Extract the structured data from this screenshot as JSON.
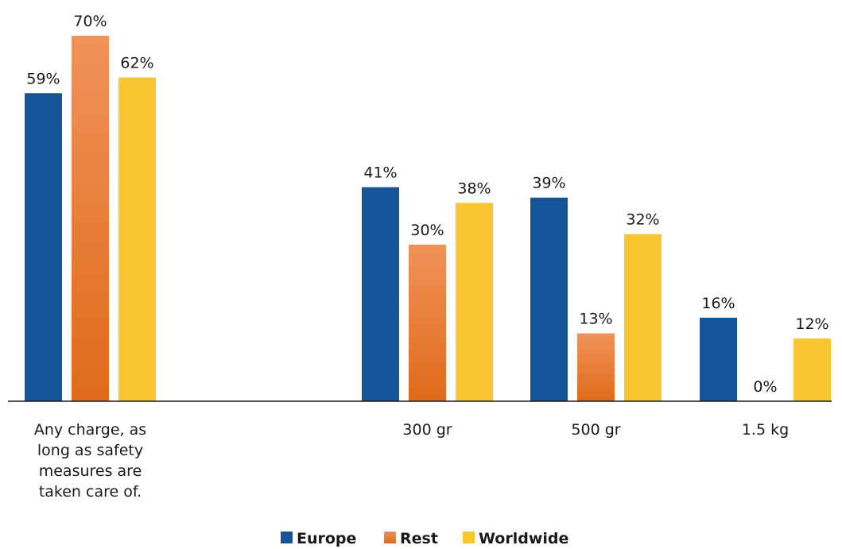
{
  "chart_data": {
    "type": "bar",
    "title": "",
    "xlabel": "",
    "ylabel": "",
    "ylim": [
      0,
      70
    ],
    "grid": false,
    "legend_position": "bottom",
    "categories": [
      [
        "Any charge, as",
        "long as safety",
        "measures are",
        "taken care of."
      ],
      [
        "300 gr"
      ],
      [
        "500 gr"
      ],
      [
        "1.5 kg"
      ]
    ],
    "series": [
      {
        "name": "Europe",
        "values": [
          59,
          41,
          39,
          16
        ],
        "labels": [
          "59%",
          "41%",
          "39%",
          "16%"
        ],
        "color": "#155496"
      },
      {
        "name": "Rest",
        "values": [
          70,
          30,
          13,
          0
        ],
        "labels": [
          "70%",
          "30%",
          "13%",
          "0%"
        ],
        "color": "#ee7420",
        "gradient_top": "#f0925a",
        "gradient_bottom": "#e06a1a"
      },
      {
        "name": "Worldwide",
        "values": [
          62,
          38,
          32,
          12
        ],
        "labels": [
          "62%",
          "38%",
          "32%",
          "12%"
        ],
        "color": "#f9c631"
      }
    ]
  }
}
